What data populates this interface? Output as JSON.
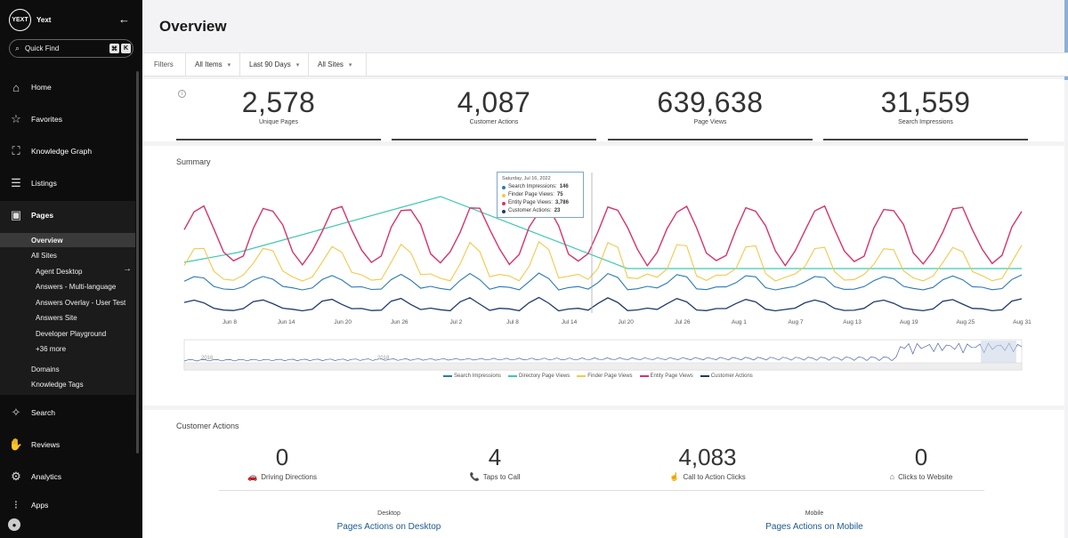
{
  "sidebar": {
    "brand_logo": "YEXT",
    "brand_name": "Yext",
    "collapse_icon": "arrow-left-icon",
    "quick_find": {
      "label": "Quick Find",
      "kbd1": "⌘",
      "kbd2": "K"
    },
    "nav": [
      {
        "label": "Home",
        "icon": "home-icon"
      },
      {
        "label": "Favorites",
        "icon": "star-icon"
      },
      {
        "label": "Knowledge Graph",
        "icon": "graph-icon"
      },
      {
        "label": "Listings",
        "icon": "listings-icon"
      },
      {
        "label": "Pages",
        "icon": "pages-icon"
      },
      {
        "label": "Search",
        "icon": "bulb-icon"
      },
      {
        "label": "Reviews",
        "icon": "handshake-icon"
      },
      {
        "label": "Analytics",
        "icon": "analytics-icon"
      },
      {
        "label": "Apps",
        "icon": "apps-icon"
      }
    ],
    "pages_sub": [
      {
        "label": "Overview"
      },
      {
        "label": "All Sites"
      },
      {
        "label": "Agent Desktop"
      },
      {
        "label": "Answers - Multi-language"
      },
      {
        "label": "Answers Overlay - User Test"
      },
      {
        "label": "Answers Site"
      },
      {
        "label": "Developer Playground"
      },
      {
        "label": "+36 more"
      },
      {
        "label": "Domains"
      },
      {
        "label": "Knowledge Tags"
      }
    ]
  },
  "header": {
    "title": "Overview"
  },
  "filters": {
    "label": "Filters",
    "items": [
      "All Items",
      "Last 90 Days",
      "All Sites"
    ]
  },
  "kpis": [
    {
      "value": "2,578",
      "label": "Unique Pages"
    },
    {
      "value": "4,087",
      "label": "Customer Actions"
    },
    {
      "value": "639,638",
      "label": "Page Views"
    },
    {
      "value": "31,559",
      "label": "Search Impressions"
    }
  ],
  "summary": {
    "title": "Summary",
    "tooltip": {
      "date": "Saturday, Jul 16, 2022",
      "rows": [
        {
          "label": "Search Impressions:",
          "value": "146",
          "color": "#2a7ab5"
        },
        {
          "label": "Finder Page Views:",
          "value": "75",
          "color": "#f2c94c"
        },
        {
          "label": "Entity Page Views:",
          "value": "3,786",
          "color": "#d6336c"
        },
        {
          "label": "Customer Actions:",
          "value": "23",
          "color": "#1f3a6e"
        }
      ]
    },
    "navigator_years": [
      "2016",
      "2018"
    ]
  },
  "chart_data": {
    "type": "line",
    "x": [
      "Jun 8",
      "Jun 14",
      "Jun 20",
      "Jun 26",
      "Jul 2",
      "Jul 8",
      "Jul 14",
      "Jul 20",
      "Jul 26",
      "Aug 1",
      "Aug 7",
      "Aug 13",
      "Aug 19",
      "Aug 25",
      "Aug 31"
    ],
    "series": [
      {
        "name": "Search Impressions",
        "color": "#2a7ab5"
      },
      {
        "name": "Directory Page Views",
        "color": "#3cc9b0"
      },
      {
        "name": "Finder Page Views",
        "color": "#f2c94c"
      },
      {
        "name": "Entity Page Views",
        "color": "#d6336c"
      },
      {
        "name": "Customer Actions",
        "color": "#1f3a6e"
      }
    ],
    "legend": "bottom"
  },
  "customer_actions": {
    "title": "Customer Actions",
    "items": [
      {
        "value": "0",
        "label": "Driving Directions",
        "icon": "car-icon",
        "glyph": "🚗"
      },
      {
        "value": "4",
        "label": "Taps to Call",
        "icon": "phone-icon",
        "glyph": "📞"
      },
      {
        "value": "4,083",
        "label": "Call to Action Clicks",
        "icon": "pointer-icon",
        "glyph": "☝"
      },
      {
        "value": "0",
        "label": "Clicks to Website",
        "icon": "house-icon",
        "glyph": "⌂"
      }
    ],
    "desktop_label": "Desktop",
    "desktop_link": "Pages Actions on Desktop",
    "mobile_label": "Mobile",
    "mobile_link": "Pages Actions on Mobile"
  }
}
